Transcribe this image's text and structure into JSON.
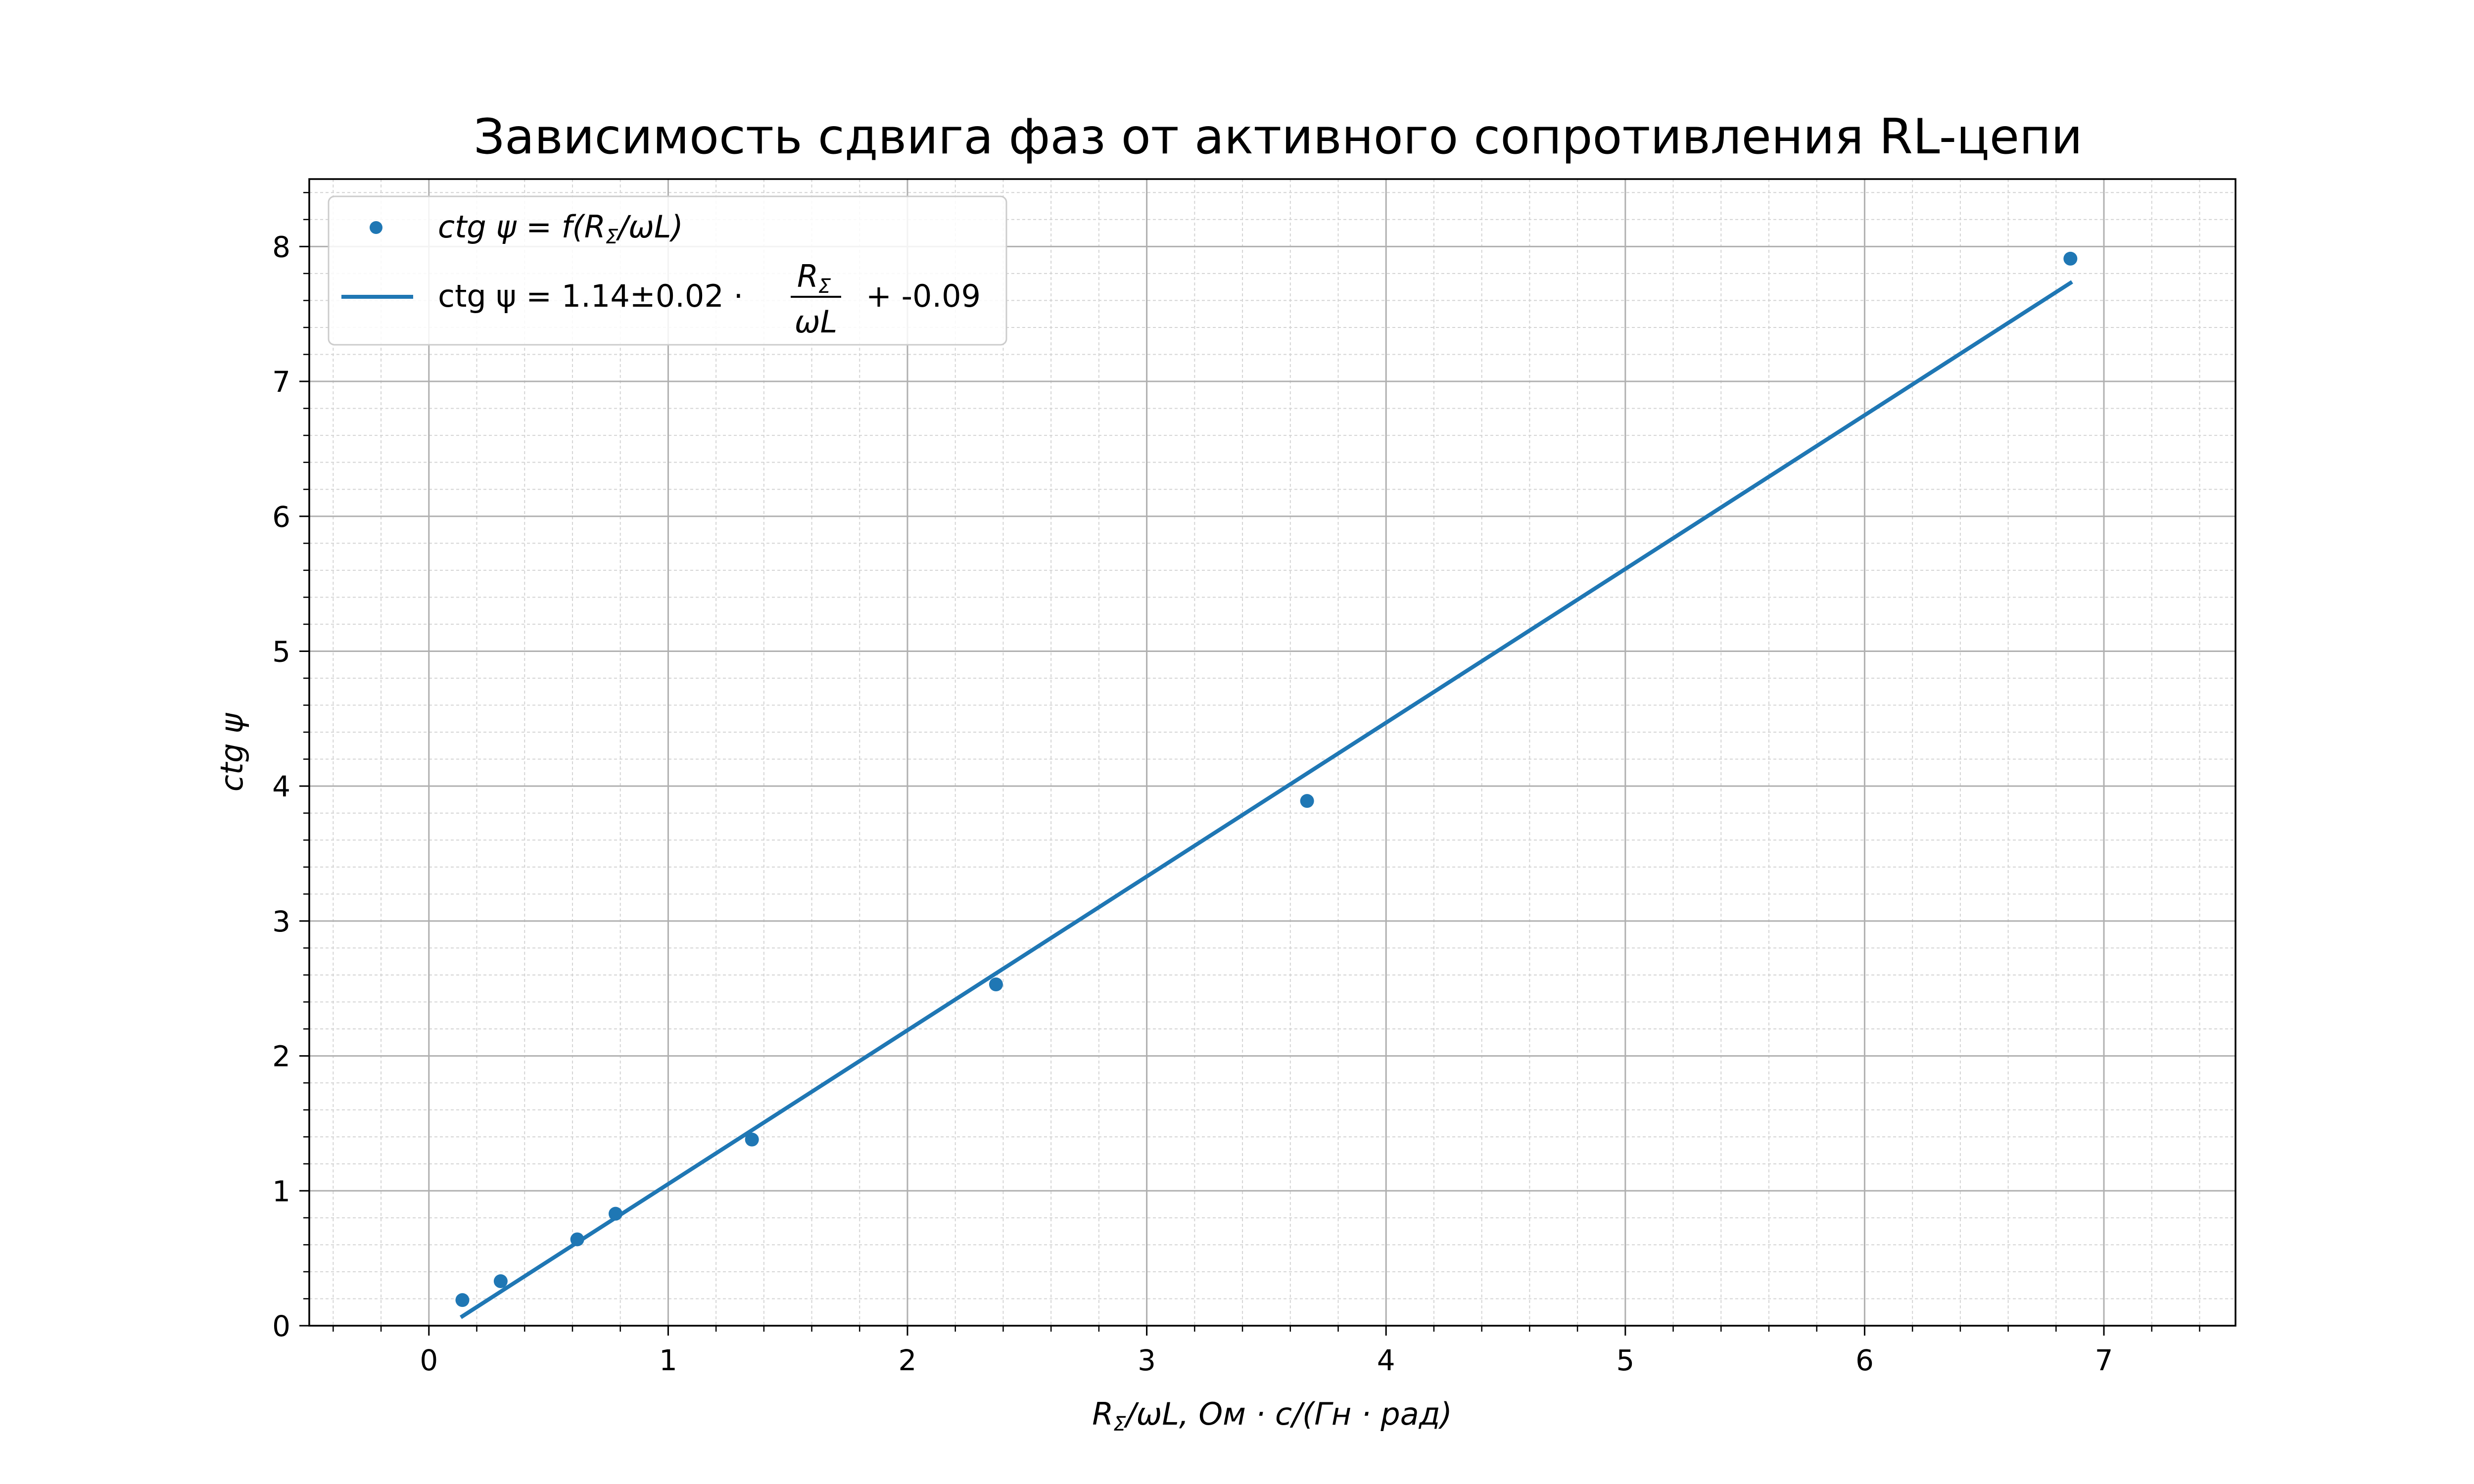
{
  "chart_data": {
    "type": "scatter",
    "title": "Зависимость сдвига фаз от активного сопротивления RL-цепи",
    "xlabel": {
      "p1": "R",
      "sub": "Σ",
      "p2": "/ωL, Ом · с/(Гн · рад)"
    },
    "ylabel": "ctg ψ",
    "xlim": [
      -0.5,
      7.55
    ],
    "ylim": [
      0,
      8.5
    ],
    "xticks": [
      "0",
      "1",
      "2",
      "3",
      "4",
      "5",
      "6",
      "7"
    ],
    "yticks": [
      "0",
      "1",
      "2",
      "3",
      "4",
      "5",
      "6",
      "7",
      "8"
    ],
    "grid": {
      "major": true,
      "minor": true
    },
    "legend_position": "top-left",
    "color": "#1f77b4",
    "series": [
      {
        "kind": "scatter",
        "x": [
          0.14,
          0.3,
          0.62,
          0.78,
          1.35,
          2.37,
          3.67,
          6.86
        ],
        "y": [
          0.19,
          0.33,
          0.64,
          0.83,
          1.38,
          2.53,
          3.89,
          7.91
        ]
      },
      {
        "kind": "line",
        "x": [
          0.14,
          6.86
        ],
        "y": [
          0.07,
          7.73
        ]
      }
    ],
    "legend": {
      "scatter": {
        "p1": "ctg ψ = f(R",
        "sub": "Σ",
        "p2": "/ωL)"
      },
      "line": {
        "p1": "ctg ψ = 1.14±0.02 ·",
        "num": "R",
        "num_sub": "Σ",
        "den": "ωL",
        "p2": "+ -0.09"
      }
    }
  }
}
